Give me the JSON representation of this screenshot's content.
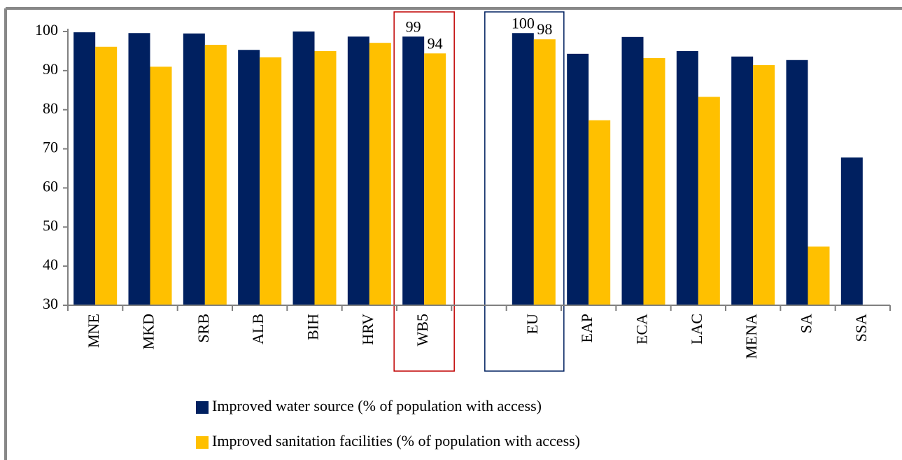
{
  "chart_data": {
    "type": "bar",
    "categories": [
      "MNE",
      "MKD",
      "SRB",
      "ALB",
      "BIH",
      "HRV",
      "WB5",
      null,
      "EU",
      "EAP",
      "ECA",
      "LAC",
      "MENA",
      "SA",
      "SSA"
    ],
    "series": [
      {
        "name": "Improved water source (% of population with access)",
        "color": "#002060",
        "values": [
          99.8,
          99.6,
          99.5,
          95.3,
          100,
          98.7,
          98.7,
          null,
          99.6,
          94.3,
          98.6,
          95.0,
          93.6,
          92.7,
          67.8
        ],
        "value_labels": [
          null,
          null,
          null,
          null,
          null,
          null,
          "99",
          null,
          "100",
          null,
          null,
          null,
          null,
          null,
          null
        ]
      },
      {
        "name": "Improved sanitation facilities (% of population with access)",
        "color": "#ffc000",
        "values": [
          96.1,
          91.0,
          96.6,
          93.4,
          95.0,
          97.1,
          94.4,
          null,
          98.0,
          77.3,
          93.2,
          83.3,
          91.4,
          45.0,
          null
        ],
        "value_labels": [
          null,
          null,
          null,
          null,
          null,
          null,
          "94",
          null,
          "98",
          null,
          null,
          null,
          null,
          null,
          null
        ]
      }
    ],
    "ylim": [
      30,
      100
    ],
    "yticks": [
      30,
      40,
      50,
      60,
      70,
      80,
      90,
      100
    ],
    "grid": false
  }
}
